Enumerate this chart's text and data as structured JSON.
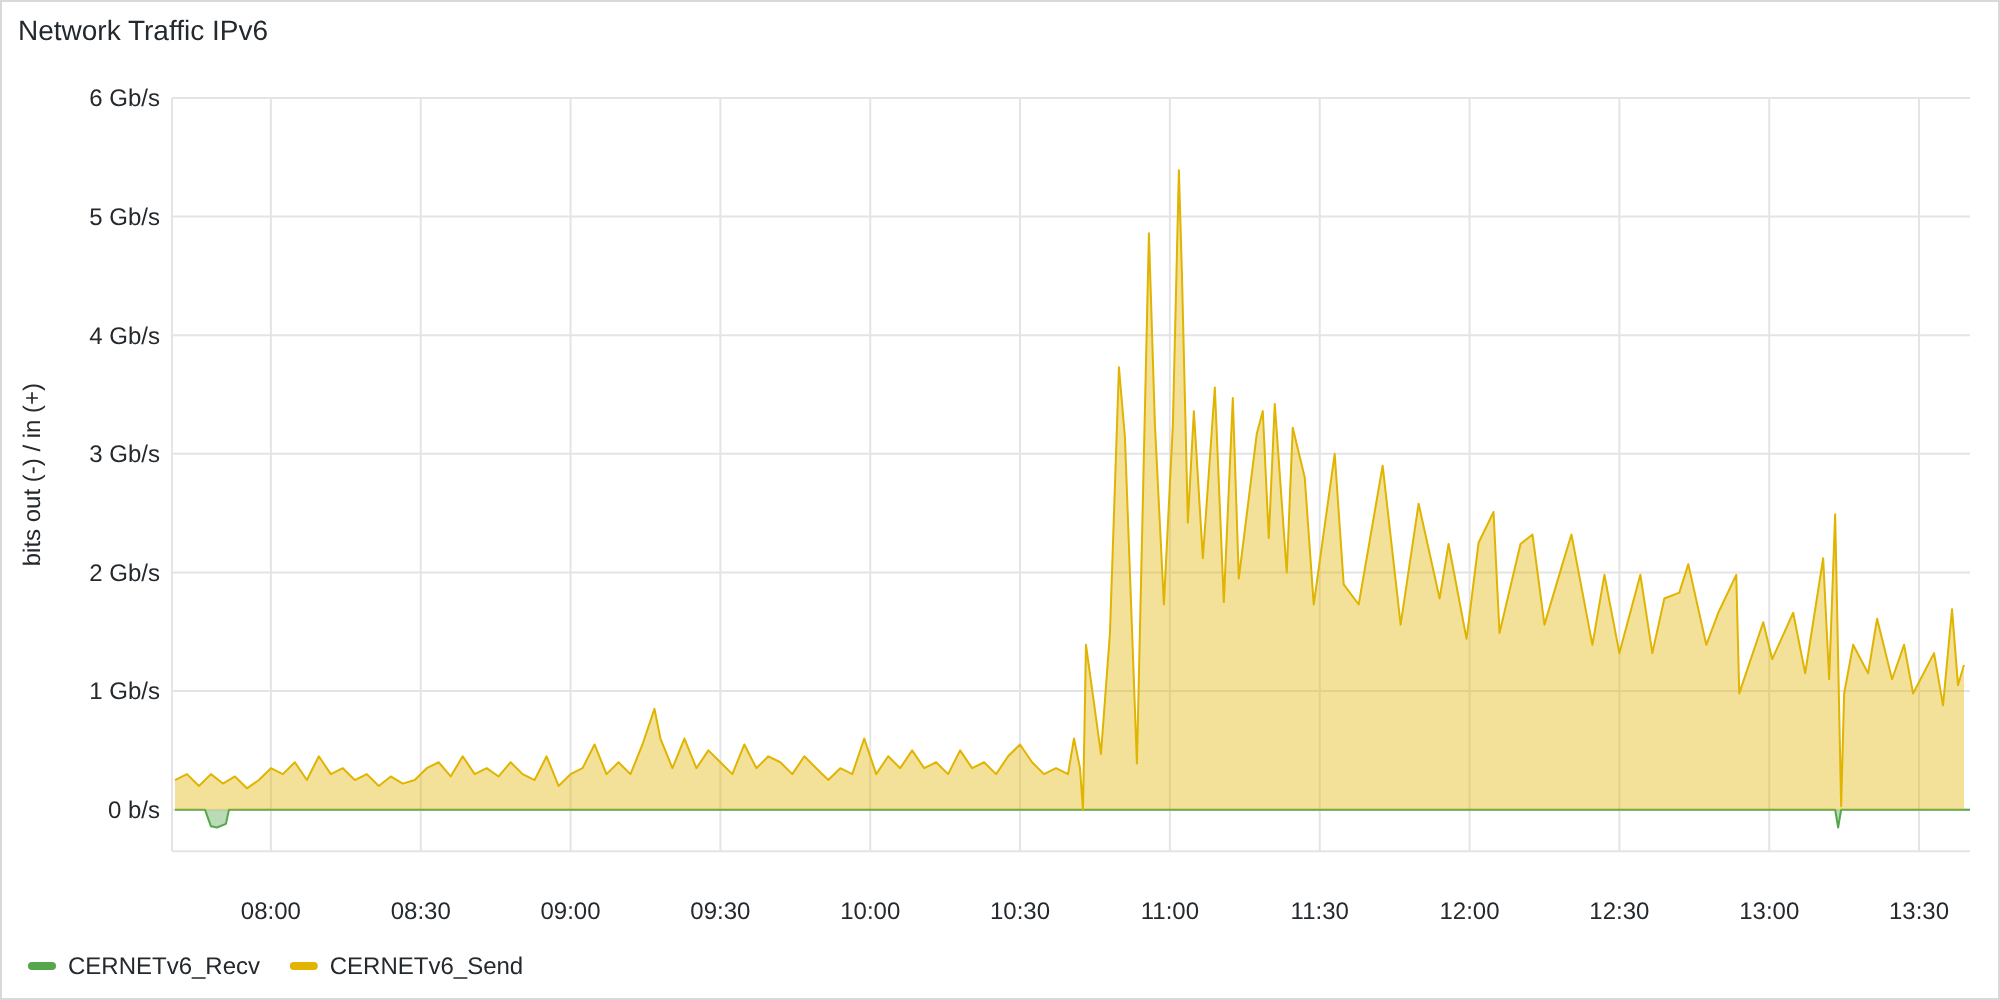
{
  "chart_data": {
    "type": "area",
    "title": "Network Traffic IPv6",
    "ylabel": "bits out (-) / in (+)",
    "xlim": [
      7.67,
      13.67
    ],
    "ylim": [
      -0.35,
      6
    ],
    "xticks": [
      {
        "value": 8,
        "label": "08:00"
      },
      {
        "value": 8.5,
        "label": "08:30"
      },
      {
        "value": 9,
        "label": "09:00"
      },
      {
        "value": 9.5,
        "label": "09:30"
      },
      {
        "value": 10,
        "label": "10:00"
      },
      {
        "value": 10.5,
        "label": "10:30"
      },
      {
        "value": 11,
        "label": "11:00"
      },
      {
        "value": 11.5,
        "label": "11:30"
      },
      {
        "value": 12,
        "label": "12:00"
      },
      {
        "value": 12.5,
        "label": "12:30"
      },
      {
        "value": 13,
        "label": "13:00"
      },
      {
        "value": 13.5,
        "label": "13:30"
      }
    ],
    "yticks": [
      {
        "value": 0,
        "label": "0 b/s"
      },
      {
        "value": 1,
        "label": "1 Gb/s"
      },
      {
        "value": 2,
        "label": "2 Gb/s"
      },
      {
        "value": 3,
        "label": "3 Gb/s"
      },
      {
        "value": 4,
        "label": "4 Gb/s"
      },
      {
        "value": 5,
        "label": "5 Gb/s"
      },
      {
        "value": 6,
        "label": "6 Gb/s"
      }
    ],
    "grid": true,
    "legend": "bottom left",
    "series": [
      {
        "name": "CERNETv6_Recv",
        "color": "#56a64b",
        "x": [
          7.68,
          7.78,
          7.8,
          7.82,
          7.85,
          7.86,
          13.22,
          13.23,
          13.24,
          13.67
        ],
        "values": [
          0,
          0,
          -0.14,
          -0.15,
          -0.12,
          0,
          0,
          -0.15,
          0,
          0
        ]
      },
      {
        "name": "CERNETv6_Send",
        "color": "#e0b400",
        "x": [
          7.68,
          7.72,
          7.76,
          7.8,
          7.84,
          7.88,
          7.92,
          7.96,
          8.0,
          8.04,
          8.08,
          8.12,
          8.16,
          8.2,
          8.24,
          8.28,
          8.32,
          8.36,
          8.4,
          8.44,
          8.48,
          8.52,
          8.56,
          8.6,
          8.64,
          8.68,
          8.72,
          8.76,
          8.8,
          8.84,
          8.88,
          8.92,
          8.96,
          9.0,
          9.04,
          9.08,
          9.12,
          9.16,
          9.2,
          9.24,
          9.28,
          9.3,
          9.34,
          9.38,
          9.42,
          9.46,
          9.5,
          9.54,
          9.58,
          9.62,
          9.66,
          9.7,
          9.74,
          9.78,
          9.82,
          9.86,
          9.9,
          9.94,
          9.98,
          10.02,
          10.06,
          10.1,
          10.14,
          10.18,
          10.22,
          10.26,
          10.3,
          10.34,
          10.38,
          10.42,
          10.46,
          10.5,
          10.54,
          10.58,
          10.62,
          10.66,
          10.68,
          10.7,
          10.71,
          10.72,
          10.77,
          10.8,
          10.83,
          10.85,
          10.89,
          10.93,
          10.95,
          10.98,
          11.01,
          11.03,
          11.04,
          11.06,
          11.08,
          11.11,
          11.15,
          11.18,
          11.21,
          11.23,
          11.29,
          11.31,
          11.33,
          11.35,
          11.39,
          11.41,
          11.45,
          11.48,
          11.55,
          11.58,
          11.63,
          11.71,
          11.77,
          11.83,
          11.9,
          11.93,
          11.99,
          12.03,
          12.08,
          12.1,
          12.17,
          12.21,
          12.25,
          12.31,
          12.34,
          12.41,
          12.45,
          12.5,
          12.57,
          12.61,
          12.65,
          12.7,
          12.73,
          12.79,
          12.83,
          12.89,
          12.9,
          12.98,
          13.01,
          13.08,
          13.12,
          13.18,
          13.2,
          13.22,
          13.24,
          13.25,
          13.28,
          13.33,
          13.36,
          13.41,
          13.45,
          13.48,
          13.55,
          13.58,
          13.61,
          13.63,
          13.65
        ],
        "values": [
          0.25,
          0.3,
          0.2,
          0.3,
          0.22,
          0.28,
          0.18,
          0.25,
          0.35,
          0.3,
          0.4,
          0.25,
          0.45,
          0.3,
          0.35,
          0.25,
          0.3,
          0.2,
          0.28,
          0.22,
          0.25,
          0.35,
          0.4,
          0.28,
          0.45,
          0.3,
          0.35,
          0.28,
          0.4,
          0.3,
          0.25,
          0.45,
          0.2,
          0.3,
          0.35,
          0.55,
          0.3,
          0.4,
          0.3,
          0.55,
          0.85,
          0.6,
          0.35,
          0.6,
          0.35,
          0.5,
          0.4,
          0.3,
          0.55,
          0.35,
          0.45,
          0.4,
          0.3,
          0.45,
          0.35,
          0.25,
          0.35,
          0.3,
          0.6,
          0.3,
          0.45,
          0.35,
          0.5,
          0.35,
          0.4,
          0.3,
          0.5,
          0.35,
          0.4,
          0.3,
          0.45,
          0.55,
          0.4,
          0.3,
          0.35,
          0.3,
          0.6,
          0.35,
          0,
          1.39,
          0.47,
          1.49,
          3.73,
          3.14,
          0.39,
          4.86,
          3.25,
          1.73,
          3.25,
          5.39,
          4.54,
          2.42,
          3.36,
          2.12,
          3.56,
          1.75,
          3.47,
          1.95,
          3.17,
          3.36,
          2.29,
          3.42,
          2.0,
          3.22,
          2.8,
          1.73,
          3.0,
          1.9,
          1.73,
          2.9,
          1.56,
          2.58,
          1.78,
          2.24,
          1.44,
          2.25,
          2.51,
          1.49,
          2.24,
          2.32,
          1.56,
          2.07,
          2.32,
          1.39,
          1.98,
          1.32,
          1.98,
          1.32,
          1.78,
          1.83,
          2.07,
          1.39,
          1.66,
          1.98,
          0.98,
          1.58,
          1.27,
          1.66,
          1.15,
          2.12,
          1.1,
          2.49,
          0.03,
          0.98,
          1.39,
          1.15,
          1.61,
          1.1,
          1.39,
          0.98,
          1.32,
          0.88,
          1.69,
          1.05,
          1.22
        ]
      }
    ]
  }
}
